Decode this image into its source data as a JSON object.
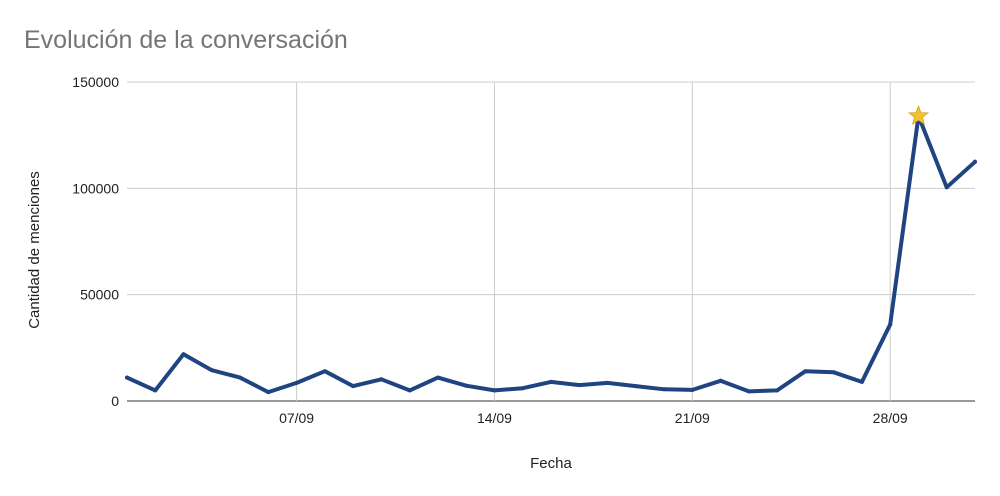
{
  "chart_data": {
    "type": "line",
    "title": "Evolución de la conversación",
    "xlabel": "Fecha",
    "ylabel": "Cantidad de menciones",
    "ylim": [
      0,
      150000
    ],
    "yticks": [
      "0",
      "50000",
      "100000",
      "150000"
    ],
    "xticks": [
      "07/09",
      "14/09",
      "21/09",
      "28/09"
    ],
    "x": [
      "01/09",
      "02/09",
      "03/09",
      "04/09",
      "05/09",
      "06/09",
      "07/09",
      "08/09",
      "09/09",
      "10/09",
      "11/09",
      "12/09",
      "13/09",
      "14/09",
      "15/09",
      "16/09",
      "17/09",
      "18/09",
      "19/09",
      "20/09",
      "21/09",
      "22/09",
      "23/09",
      "24/09",
      "25/09",
      "26/09",
      "27/09",
      "28/09",
      "29/09",
      "30/09",
      "01/10"
    ],
    "series": [
      {
        "values": [
          11000,
          5000,
          22000,
          14500,
          11000,
          4200,
          8500,
          14000,
          7000,
          10200,
          5000,
          11000,
          7200,
          5000,
          6000,
          9000,
          7500,
          8500,
          7000,
          5500,
          5200,
          9500,
          4500,
          5000,
          14000,
          13500,
          9000,
          36000,
          134000,
          100500,
          112500
        ],
        "color": "#1f4481"
      }
    ],
    "highlight": {
      "x": "29/09",
      "value": 134000,
      "marker": "star-icon",
      "color": "#f1c232"
    },
    "grid": true,
    "legend": "none"
  }
}
